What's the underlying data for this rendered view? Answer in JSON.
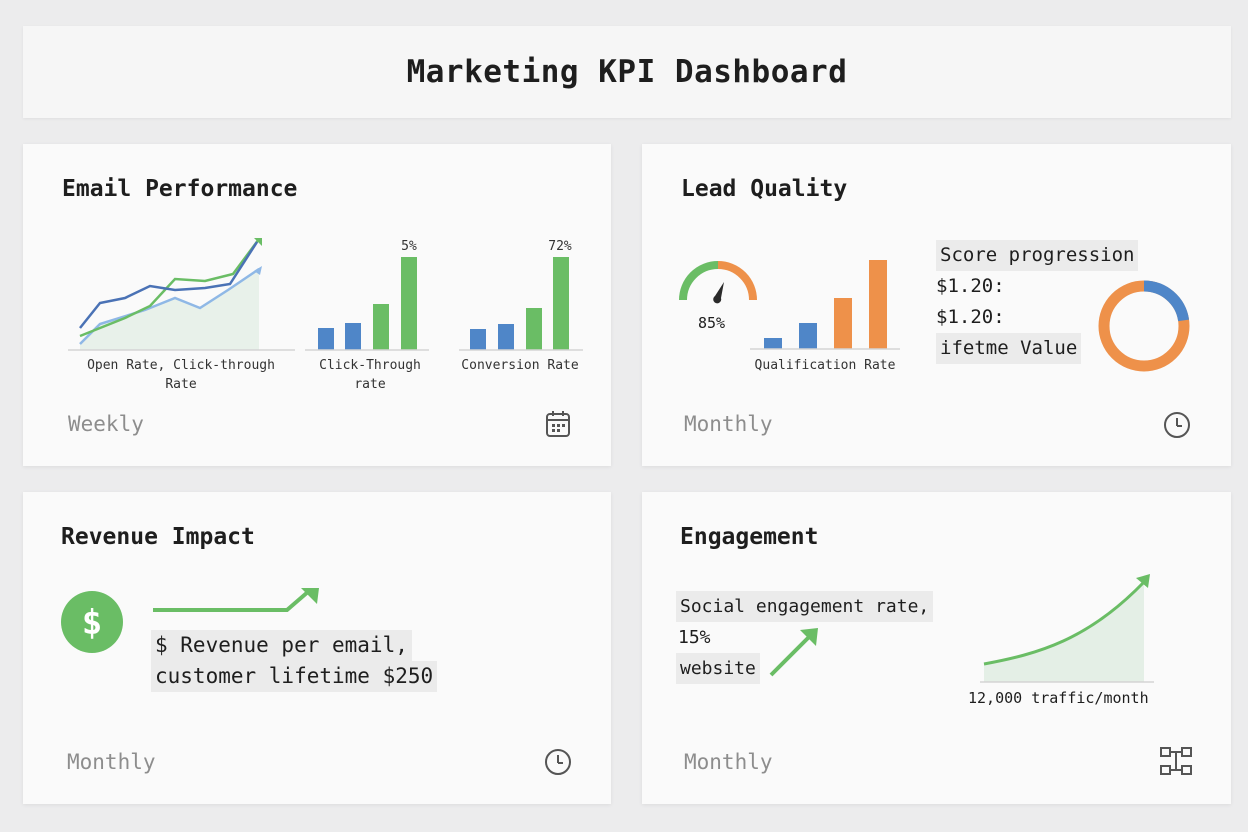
{
  "page": {
    "title": "Marketing KPI Dashboard"
  },
  "email": {
    "title": "Email Performance",
    "period": "Weekly",
    "footer_icon": "calendar-icon",
    "line_label": "Open Rate, Click-through\nRate",
    "ctr_label": "Click-Through\nrate",
    "ctr_value": "5%",
    "conv_label": "Conversion Rate",
    "conv_value": "72%"
  },
  "lead": {
    "title": "Lead Quality",
    "period": "Monthly",
    "footer_icon": "clock-icon",
    "gauge_value": "85%",
    "bar_label": "Qualification Rate",
    "lines": [
      "Score progression",
      "$1.20:",
      "$1.20:",
      "ifetme Value"
    ]
  },
  "revenue": {
    "title": "Revenue Impact",
    "period": "Monthly",
    "footer_icon": "clock-icon",
    "dollar_icon": "dollar-icon",
    "line1": "$ Revenue per email,",
    "line2": "customer lifetime $250"
  },
  "engagement": {
    "title": "Engagement",
    "period": "Monthly",
    "footer_icon": "network-icon",
    "lines": [
      "Social engagement rate,",
      "15%",
      "website"
    ],
    "traffic_label": "12,000 traffic/month"
  },
  "colors": {
    "green": "#6abd65",
    "blue": "#4f86c8",
    "light_blue": "#8fb8e6",
    "orange": "#ee914a",
    "dark_blue": "#4a72b5"
  }
}
